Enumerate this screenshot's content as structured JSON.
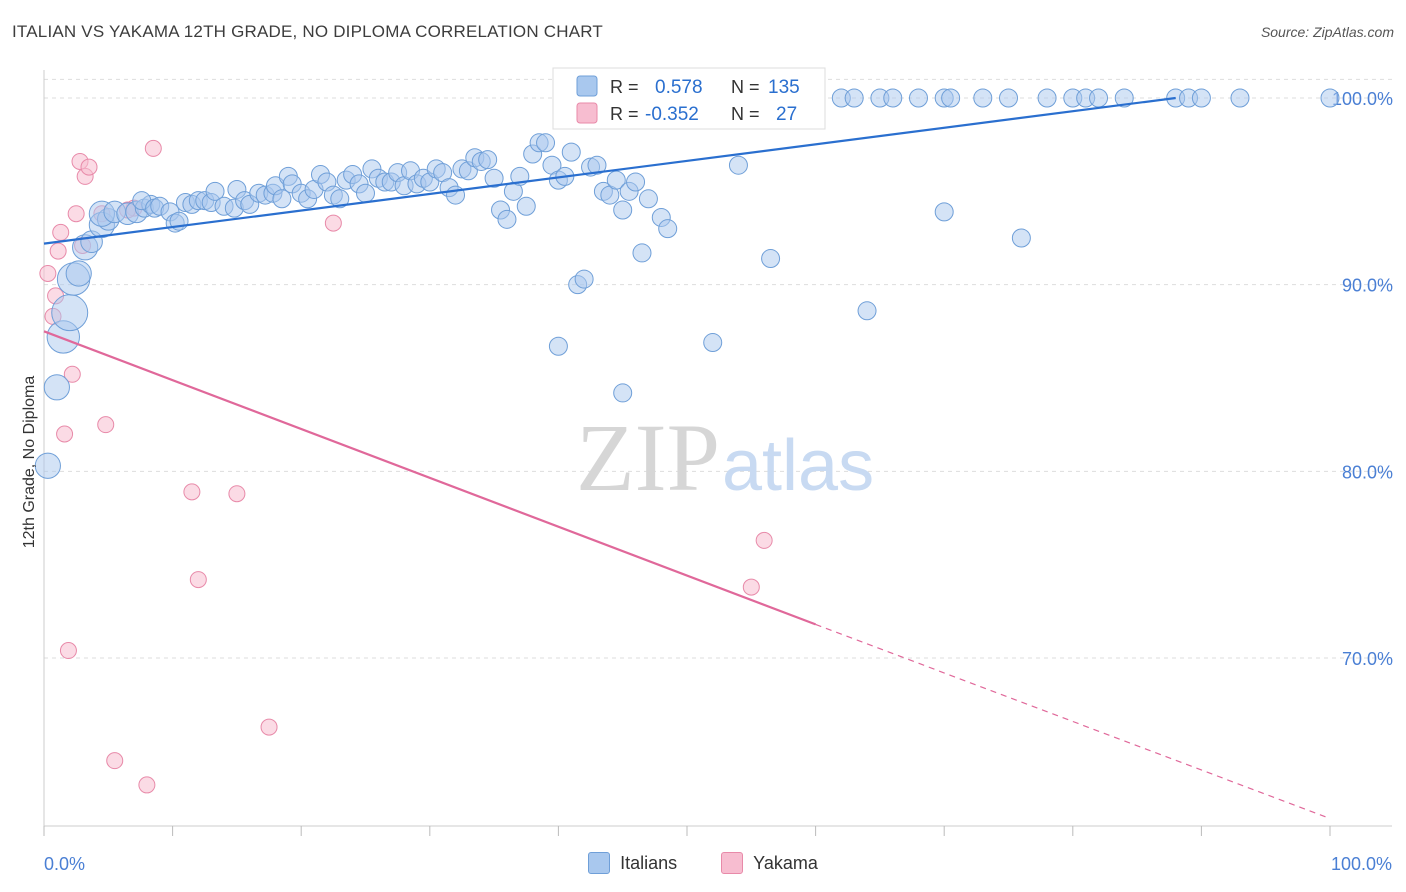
{
  "header": {
    "title": "ITALIAN VS YAKAMA 12TH GRADE, NO DIPLOMA CORRELATION CHART",
    "source": "Source: ZipAtlas.com"
  },
  "watermark": {
    "zip": "ZIP",
    "atlas": "atlas"
  },
  "stats": {
    "italians": {
      "r_label": "R =",
      "r_value": "0.578",
      "n_label": "N =",
      "n_value": "135"
    },
    "yakama": {
      "r_label": "R =",
      "r_value": "-0.352",
      "n_label": "N =",
      "n_value": "27"
    }
  },
  "colors": {
    "italians_fill": "#a9c8ee",
    "italians_stroke": "#6f9fd8",
    "italians_line": "#2a6fcf",
    "yakama_fill": "#f7bdd0",
    "yakama_stroke": "#e88aa9",
    "yakama_line": "#e0689a",
    "axis_text": "#4a7fd4",
    "grid": "#dddddd"
  },
  "chart_data": {
    "type": "scatter",
    "title": "ITALIAN VS YAKAMA 12TH GRADE, NO DIPLOMA CORRELATION CHART",
    "xlabel": "",
    "ylabel": "12th Grade, No Diploma",
    "xlim": [
      0,
      100
    ],
    "ylim": [
      61,
      101.5
    ],
    "x_tick_labels": [
      "0.0%",
      "100.0%"
    ],
    "y_ticks": [
      70,
      80,
      90,
      100
    ],
    "y_tick_labels": [
      "70.0%",
      "80.0%",
      "90.0%",
      "100.0%"
    ],
    "grid": true,
    "legend_position": "bottom",
    "series": [
      {
        "name": "Italians",
        "r": 0.578,
        "n": 135,
        "trend": {
          "x": [
            0,
            88
          ],
          "y": [
            92.2,
            100.0
          ]
        },
        "points": [
          [
            0.3,
            80.3,
            14
          ],
          [
            1.0,
            84.5,
            14
          ],
          [
            1.5,
            87.2,
            18
          ],
          [
            2.0,
            88.5,
            20
          ],
          [
            2.3,
            90.3,
            18
          ],
          [
            2.7,
            90.6,
            14
          ],
          [
            3.2,
            92.0,
            14
          ],
          [
            3.7,
            92.3,
            12
          ],
          [
            4.5,
            93.2,
            14
          ],
          [
            5.0,
            93.5,
            12
          ],
          [
            4.5,
            93.8,
            14
          ],
          [
            5.5,
            93.9,
            12
          ],
          [
            6.5,
            93.8,
            12
          ],
          [
            7.2,
            93.9,
            12
          ],
          [
            7.8,
            94.1,
            10
          ],
          [
            8.3,
            94.3,
            10
          ],
          [
            7.6,
            94.5,
            10
          ],
          [
            8.6,
            94.1,
            10
          ],
          [
            9.0,
            94.2,
            10
          ],
          [
            9.8,
            93.9,
            10
          ],
          [
            10.2,
            93.3,
            10
          ],
          [
            10.5,
            93.4,
            10
          ],
          [
            11.0,
            94.4,
            10
          ],
          [
            11.5,
            94.3,
            10
          ],
          [
            12.0,
            94.5,
            10
          ],
          [
            12.5,
            94.5,
            10
          ],
          [
            13.0,
            94.4,
            10
          ],
          [
            13.3,
            95.0,
            10
          ],
          [
            14.0,
            94.2,
            10
          ],
          [
            14.8,
            94.1,
            10
          ],
          [
            15.0,
            95.1,
            10
          ],
          [
            15.6,
            94.5,
            10
          ],
          [
            16.0,
            94.3,
            10
          ],
          [
            16.7,
            94.9,
            10
          ],
          [
            17.2,
            94.8,
            10
          ],
          [
            17.8,
            94.9,
            10
          ],
          [
            18.0,
            95.3,
            10
          ],
          [
            18.5,
            94.6,
            10
          ],
          [
            19.0,
            95.8,
            10
          ],
          [
            19.3,
            95.4,
            10
          ],
          [
            20.0,
            94.9,
            10
          ],
          [
            20.5,
            94.6,
            10
          ],
          [
            21.0,
            95.1,
            10
          ],
          [
            21.5,
            95.9,
            10
          ],
          [
            22.0,
            95.5,
            10
          ],
          [
            22.5,
            94.8,
            10
          ],
          [
            23.0,
            94.6,
            10
          ],
          [
            23.5,
            95.6,
            10
          ],
          [
            24.0,
            95.9,
            10
          ],
          [
            24.5,
            95.4,
            10
          ],
          [
            25.0,
            94.9,
            10
          ],
          [
            25.5,
            96.2,
            10
          ],
          [
            26.0,
            95.7,
            10
          ],
          [
            26.5,
            95.5,
            10
          ],
          [
            27.0,
            95.5,
            10
          ],
          [
            27.5,
            96.0,
            10
          ],
          [
            28.0,
            95.3,
            10
          ],
          [
            28.5,
            96.1,
            10
          ],
          [
            29.0,
            95.4,
            10
          ],
          [
            29.5,
            95.7,
            10
          ],
          [
            30.0,
            95.5,
            10
          ],
          [
            30.5,
            96.2,
            10
          ],
          [
            31.0,
            96.0,
            10
          ],
          [
            31.5,
            95.2,
            10
          ],
          [
            32.0,
            94.8,
            10
          ],
          [
            32.5,
            96.2,
            10
          ],
          [
            33.0,
            96.1,
            10
          ],
          [
            33.5,
            96.8,
            10
          ],
          [
            34.0,
            96.6,
            10
          ],
          [
            34.5,
            96.7,
            10
          ],
          [
            35.0,
            95.7,
            10
          ],
          [
            35.5,
            94.0,
            10
          ],
          [
            36.0,
            93.5,
            10
          ],
          [
            36.5,
            95.0,
            10
          ],
          [
            37.0,
            95.8,
            10
          ],
          [
            37.5,
            94.2,
            10
          ],
          [
            38.0,
            97.0,
            10
          ],
          [
            38.5,
            97.6,
            10
          ],
          [
            39.0,
            97.6,
            10
          ],
          [
            39.5,
            96.4,
            10
          ],
          [
            40.0,
            95.6,
            10
          ],
          [
            40.5,
            95.8,
            10
          ],
          [
            41.0,
            97.1,
            10
          ],
          [
            41.5,
            90.0,
            10
          ],
          [
            42.0,
            90.3,
            10
          ],
          [
            42.5,
            96.3,
            10
          ],
          [
            43.0,
            96.4,
            10
          ],
          [
            43.5,
            95.0,
            10
          ],
          [
            44.0,
            94.8,
            10
          ],
          [
            44.5,
            95.6,
            10
          ],
          [
            45.0,
            94.0,
            10
          ],
          [
            45.5,
            95.0,
            10
          ],
          [
            46.0,
            95.5,
            10
          ],
          [
            46.5,
            91.7,
            10
          ],
          [
            47.0,
            94.6,
            10
          ],
          [
            48.0,
            93.6,
            10
          ],
          [
            48.5,
            93.0,
            10
          ],
          [
            40.0,
            86.7,
            10
          ],
          [
            45.0,
            84.2,
            10
          ],
          [
            52.0,
            86.9,
            10
          ],
          [
            50.0,
            100.0,
            10
          ],
          [
            51.0,
            100.0,
            10
          ],
          [
            52.0,
            100.0,
            10
          ],
          [
            53.0,
            100.0,
            10
          ],
          [
            54.0,
            96.4,
            10
          ],
          [
            55.0,
            100.0,
            10
          ],
          [
            56.0,
            100.0,
            10
          ],
          [
            56.5,
            91.4,
            10
          ],
          [
            57.5,
            100.0,
            10
          ],
          [
            58.0,
            100.0,
            10
          ],
          [
            59.0,
            100.0,
            10
          ],
          [
            60.0,
            100.0,
            10
          ],
          [
            62.0,
            100.0,
            10
          ],
          [
            63.0,
            100.0,
            10
          ],
          [
            64.0,
            88.6,
            10
          ],
          [
            65.0,
            100.0,
            10
          ],
          [
            66.0,
            100.0,
            10
          ],
          [
            68.0,
            100.0,
            10
          ],
          [
            70.0,
            100.0,
            10
          ],
          [
            70.5,
            100.0,
            10
          ],
          [
            73.0,
            100.0,
            10
          ],
          [
            75.0,
            100.0,
            10
          ],
          [
            76.0,
            92.5,
            10
          ],
          [
            78.0,
            100.0,
            10
          ],
          [
            80.0,
            100.0,
            10
          ],
          [
            81.0,
            100.0,
            10
          ],
          [
            82.0,
            100.0,
            10
          ],
          [
            84.0,
            100.0,
            10
          ],
          [
            88.0,
            100.0,
            10
          ],
          [
            89.0,
            100.0,
            10
          ],
          [
            90.0,
            100.0,
            10
          ],
          [
            93.0,
            100.0,
            10
          ],
          [
            100.0,
            100.0,
            10
          ],
          [
            70.0,
            93.9,
            10
          ],
          [
            56.0,
            99.0,
            10
          ]
        ]
      },
      {
        "name": "Yakama",
        "r": -0.352,
        "n": 27,
        "trend": {
          "x": [
            0,
            60
          ],
          "y": [
            87.5,
            71.8
          ]
        },
        "trend_dashed": {
          "x": [
            60,
            100
          ],
          "y": [
            71.8,
            61.4
          ]
        },
        "points": [
          [
            0.3,
            90.6
          ],
          [
            0.7,
            88.3
          ],
          [
            0.9,
            89.4
          ],
          [
            1.1,
            91.8
          ],
          [
            1.3,
            92.8
          ],
          [
            1.6,
            82.0
          ],
          [
            1.9,
            70.4
          ],
          [
            2.2,
            85.2
          ],
          [
            2.5,
            93.8
          ],
          [
            2.8,
            96.6
          ],
          [
            3.0,
            92.1
          ],
          [
            3.2,
            95.8
          ],
          [
            3.5,
            96.3
          ],
          [
            4.5,
            93.8
          ],
          [
            4.8,
            82.5
          ],
          [
            5.5,
            64.5
          ],
          [
            7.0,
            94.1
          ],
          [
            8.0,
            63.2
          ],
          [
            8.5,
            97.3
          ],
          [
            11.5,
            78.9
          ],
          [
            12.0,
            74.2
          ],
          [
            15.0,
            78.8
          ],
          [
            17.5,
            66.3
          ],
          [
            22.5,
            93.3
          ],
          [
            55.0,
            73.8
          ],
          [
            56.0,
            76.3
          ],
          [
            6.5,
            94.0
          ]
        ]
      }
    ]
  },
  "legend": {
    "italians": "Italians",
    "yakama": "Yakama"
  }
}
